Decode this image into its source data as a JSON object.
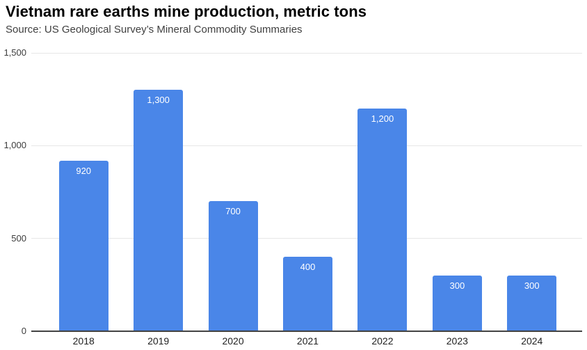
{
  "header": {
    "title": "Vietnam rare earths mine production, metric tons",
    "source": "Source: US Geological Survey’s Mineral Commodity Summaries"
  },
  "chart_data": {
    "type": "bar",
    "title": "Vietnam rare earths mine production, metric tons",
    "subtitle": "Source: US Geological Survey’s Mineral Commodity Summaries",
    "categories": [
      "2018",
      "2019",
      "2020",
      "2021",
      "2022",
      "2023",
      "2024"
    ],
    "values": [
      920,
      1300,
      700,
      400,
      1200,
      300,
      300
    ],
    "value_labels": [
      "920",
      "1,300",
      "700",
      "400",
      "1,200",
      "300",
      "300"
    ],
    "xlabel": "",
    "ylabel": "",
    "ylim": [
      0,
      1500
    ],
    "yticks": [
      {
        "value": 0,
        "label": "0"
      },
      {
        "value": 500,
        "label": "500"
      },
      {
        "value": 1000,
        "label": "1,000"
      },
      {
        "value": 1500,
        "label": "1,500"
      }
    ],
    "grid": true,
    "legend": "none",
    "colors": {
      "bar": "#4a86e8",
      "bar_label": "#ffffff",
      "gridline": "#e6e6e6",
      "axis_line": "#424242",
      "y_tick_label": "#3c3c3c",
      "x_tick_label": "#1f1f1f",
      "title": "#000000",
      "source": "#3f3f3f"
    }
  }
}
